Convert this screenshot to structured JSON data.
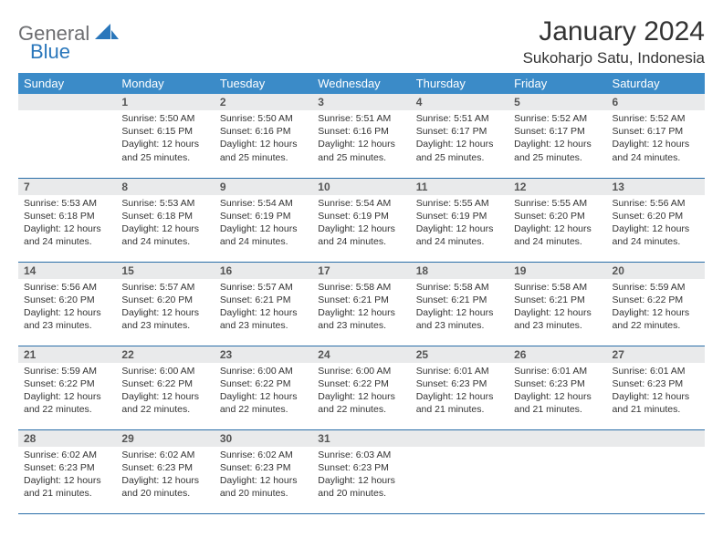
{
  "logo": {
    "main": "General",
    "sub": "Blue"
  },
  "title": "January 2024",
  "location": "Sukoharjo Satu, Indonesia",
  "colors": {
    "header_bg": "#3b8bc8",
    "header_text": "#ffffff",
    "row_border": "#2a6ea8",
    "daynum_bg": "#e9eaeb",
    "logo_gray": "#6d6e71",
    "logo_blue": "#2a77bb",
    "text": "#333333",
    "background": "#ffffff"
  },
  "weekdays": [
    "Sunday",
    "Monday",
    "Tuesday",
    "Wednesday",
    "Thursday",
    "Friday",
    "Saturday"
  ],
  "weeks": [
    [
      null,
      {
        "n": "1",
        "sr": "Sunrise: 5:50 AM",
        "ss": "Sunset: 6:15 PM",
        "dl": "Daylight: 12 hours and 25 minutes."
      },
      {
        "n": "2",
        "sr": "Sunrise: 5:50 AM",
        "ss": "Sunset: 6:16 PM",
        "dl": "Daylight: 12 hours and 25 minutes."
      },
      {
        "n": "3",
        "sr": "Sunrise: 5:51 AM",
        "ss": "Sunset: 6:16 PM",
        "dl": "Daylight: 12 hours and 25 minutes."
      },
      {
        "n": "4",
        "sr": "Sunrise: 5:51 AM",
        "ss": "Sunset: 6:17 PM",
        "dl": "Daylight: 12 hours and 25 minutes."
      },
      {
        "n": "5",
        "sr": "Sunrise: 5:52 AM",
        "ss": "Sunset: 6:17 PM",
        "dl": "Daylight: 12 hours and 25 minutes."
      },
      {
        "n": "6",
        "sr": "Sunrise: 5:52 AM",
        "ss": "Sunset: 6:17 PM",
        "dl": "Daylight: 12 hours and 24 minutes."
      }
    ],
    [
      {
        "n": "7",
        "sr": "Sunrise: 5:53 AM",
        "ss": "Sunset: 6:18 PM",
        "dl": "Daylight: 12 hours and 24 minutes."
      },
      {
        "n": "8",
        "sr": "Sunrise: 5:53 AM",
        "ss": "Sunset: 6:18 PM",
        "dl": "Daylight: 12 hours and 24 minutes."
      },
      {
        "n": "9",
        "sr": "Sunrise: 5:54 AM",
        "ss": "Sunset: 6:19 PM",
        "dl": "Daylight: 12 hours and 24 minutes."
      },
      {
        "n": "10",
        "sr": "Sunrise: 5:54 AM",
        "ss": "Sunset: 6:19 PM",
        "dl": "Daylight: 12 hours and 24 minutes."
      },
      {
        "n": "11",
        "sr": "Sunrise: 5:55 AM",
        "ss": "Sunset: 6:19 PM",
        "dl": "Daylight: 12 hours and 24 minutes."
      },
      {
        "n": "12",
        "sr": "Sunrise: 5:55 AM",
        "ss": "Sunset: 6:20 PM",
        "dl": "Daylight: 12 hours and 24 minutes."
      },
      {
        "n": "13",
        "sr": "Sunrise: 5:56 AM",
        "ss": "Sunset: 6:20 PM",
        "dl": "Daylight: 12 hours and 24 minutes."
      }
    ],
    [
      {
        "n": "14",
        "sr": "Sunrise: 5:56 AM",
        "ss": "Sunset: 6:20 PM",
        "dl": "Daylight: 12 hours and 23 minutes."
      },
      {
        "n": "15",
        "sr": "Sunrise: 5:57 AM",
        "ss": "Sunset: 6:20 PM",
        "dl": "Daylight: 12 hours and 23 minutes."
      },
      {
        "n": "16",
        "sr": "Sunrise: 5:57 AM",
        "ss": "Sunset: 6:21 PM",
        "dl": "Daylight: 12 hours and 23 minutes."
      },
      {
        "n": "17",
        "sr": "Sunrise: 5:58 AM",
        "ss": "Sunset: 6:21 PM",
        "dl": "Daylight: 12 hours and 23 minutes."
      },
      {
        "n": "18",
        "sr": "Sunrise: 5:58 AM",
        "ss": "Sunset: 6:21 PM",
        "dl": "Daylight: 12 hours and 23 minutes."
      },
      {
        "n": "19",
        "sr": "Sunrise: 5:58 AM",
        "ss": "Sunset: 6:21 PM",
        "dl": "Daylight: 12 hours and 23 minutes."
      },
      {
        "n": "20",
        "sr": "Sunrise: 5:59 AM",
        "ss": "Sunset: 6:22 PM",
        "dl": "Daylight: 12 hours and 22 minutes."
      }
    ],
    [
      {
        "n": "21",
        "sr": "Sunrise: 5:59 AM",
        "ss": "Sunset: 6:22 PM",
        "dl": "Daylight: 12 hours and 22 minutes."
      },
      {
        "n": "22",
        "sr": "Sunrise: 6:00 AM",
        "ss": "Sunset: 6:22 PM",
        "dl": "Daylight: 12 hours and 22 minutes."
      },
      {
        "n": "23",
        "sr": "Sunrise: 6:00 AM",
        "ss": "Sunset: 6:22 PM",
        "dl": "Daylight: 12 hours and 22 minutes."
      },
      {
        "n": "24",
        "sr": "Sunrise: 6:00 AM",
        "ss": "Sunset: 6:22 PM",
        "dl": "Daylight: 12 hours and 22 minutes."
      },
      {
        "n": "25",
        "sr": "Sunrise: 6:01 AM",
        "ss": "Sunset: 6:23 PM",
        "dl": "Daylight: 12 hours and 21 minutes."
      },
      {
        "n": "26",
        "sr": "Sunrise: 6:01 AM",
        "ss": "Sunset: 6:23 PM",
        "dl": "Daylight: 12 hours and 21 minutes."
      },
      {
        "n": "27",
        "sr": "Sunrise: 6:01 AM",
        "ss": "Sunset: 6:23 PM",
        "dl": "Daylight: 12 hours and 21 minutes."
      }
    ],
    [
      {
        "n": "28",
        "sr": "Sunrise: 6:02 AM",
        "ss": "Sunset: 6:23 PM",
        "dl": "Daylight: 12 hours and 21 minutes."
      },
      {
        "n": "29",
        "sr": "Sunrise: 6:02 AM",
        "ss": "Sunset: 6:23 PM",
        "dl": "Daylight: 12 hours and 20 minutes."
      },
      {
        "n": "30",
        "sr": "Sunrise: 6:02 AM",
        "ss": "Sunset: 6:23 PM",
        "dl": "Daylight: 12 hours and 20 minutes."
      },
      {
        "n": "31",
        "sr": "Sunrise: 6:03 AM",
        "ss": "Sunset: 6:23 PM",
        "dl": "Daylight: 12 hours and 20 minutes."
      },
      null,
      null,
      null
    ]
  ]
}
